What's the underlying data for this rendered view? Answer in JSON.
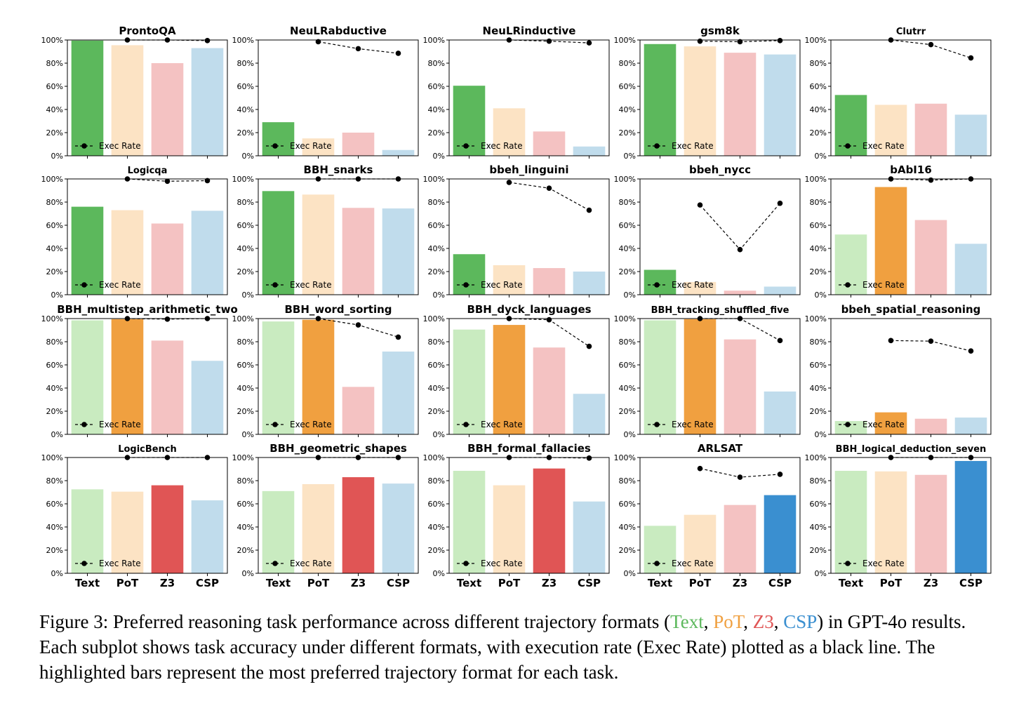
{
  "chart_data": {
    "type": "bar",
    "categories": [
      "Text",
      "PoT",
      "Z3",
      "CSP"
    ],
    "legend_label": "Exec Rate",
    "legend_placement": "lower-left",
    "ylim": [
      0,
      100
    ],
    "yticks": [
      "0%",
      "20%",
      "40%",
      "60%",
      "80%",
      "100%"
    ],
    "colors": {
      "light": [
        "#c9ebc0",
        "#fce3c4",
        "#f4c2c2",
        "#c0dcec"
      ],
      "highlight": [
        "#5cb85c",
        "#f0a040",
        "#e05555",
        "#3a8fd0"
      ],
      "line": "#000000"
    },
    "panels": [
      {
        "title": "ProntoQA",
        "values": [
          99.5,
          95.5,
          80,
          93
        ],
        "exec": [
          null,
          100,
          100,
          99.5
        ],
        "highlight": 0,
        "bold_title": true
      },
      {
        "title": "NeuLRabductive",
        "values": [
          29,
          15,
          20,
          5
        ],
        "exec": [
          null,
          98.5,
          92.5,
          88.5
        ],
        "highlight": 0,
        "bold_title": true
      },
      {
        "title": "NeuLRinductive",
        "values": [
          60.5,
          41,
          21,
          8
        ],
        "exec": [
          null,
          100,
          99,
          97.5
        ],
        "highlight": 0,
        "bold_title": true
      },
      {
        "title": "gsm8k",
        "values": [
          96.5,
          94.5,
          89,
          87.5
        ],
        "exec": [
          null,
          99,
          98.5,
          99.5
        ],
        "highlight": 0,
        "bold_title": true
      },
      {
        "title": "Clutrr",
        "values": [
          52.5,
          44,
          45,
          35.5
        ],
        "exec": [
          null,
          100,
          96,
          84.5
        ],
        "highlight": 0,
        "bold_title": false
      },
      {
        "title": "Logicqa",
        "values": [
          76,
          73,
          61.5,
          72.5
        ],
        "exec": [
          null,
          100,
          98,
          98.5
        ],
        "highlight": 0,
        "bold_title": false
      },
      {
        "title": "BBH_snarks",
        "values": [
          89.5,
          86.5,
          75,
          74.5
        ],
        "exec": [
          null,
          100,
          100,
          100
        ],
        "highlight": 0,
        "bold_title": true
      },
      {
        "title": "bbeh_linguini",
        "values": [
          35,
          25.5,
          23,
          20
        ],
        "exec": [
          null,
          97,
          92,
          73
        ],
        "highlight": 0,
        "bold_title": true
      },
      {
        "title": "bbeh_nycc",
        "values": [
          21.5,
          11,
          3.5,
          7
        ],
        "exec": [
          null,
          77.5,
          39,
          79
        ],
        "highlight": 0,
        "bold_title": true
      },
      {
        "title": "bAbI16",
        "values": [
          52,
          93,
          64.5,
          44
        ],
        "exec": [
          null,
          100,
          99,
          100
        ],
        "highlight": 1,
        "bold_title": true
      },
      {
        "title": "BBH_multistep_arithmetic_two",
        "values": [
          98.5,
          99.5,
          81,
          63.5
        ],
        "exec": [
          null,
          100,
          99.5,
          100
        ],
        "highlight": 1,
        "bold_title": true
      },
      {
        "title": "BBH_word_sorting",
        "values": [
          97.5,
          99,
          41,
          71.5
        ],
        "exec": [
          null,
          100,
          94.5,
          84
        ],
        "highlight": 1,
        "bold_title": true
      },
      {
        "title": "BBH_dyck_languages",
        "values": [
          90.5,
          94.5,
          75,
          35
        ],
        "exec": [
          null,
          100,
          99,
          76
        ],
        "highlight": 1,
        "bold_title": true
      },
      {
        "title": "BBH_tracking_shuffled_five",
        "values": [
          98.5,
          99.5,
          82,
          37
        ],
        "exec": [
          null,
          100,
          100,
          81
        ],
        "highlight": 1,
        "bold_title": false
      },
      {
        "title": "bbeh_spatial_reasoning",
        "values": [
          11.5,
          19,
          13.5,
          14.5
        ],
        "exec": [
          null,
          81,
          80.5,
          72
        ],
        "highlight": 1,
        "bold_title": true
      },
      {
        "title": "LogicBench",
        "values": [
          72.5,
          70.5,
          76,
          63
        ],
        "exec": [
          null,
          100,
          100,
          100
        ],
        "highlight": 2,
        "bold_title": false
      },
      {
        "title": "BBH_geometric_shapes",
        "values": [
          71,
          77,
          83,
          77.5
        ],
        "exec": [
          null,
          100,
          100,
          100
        ],
        "highlight": 2,
        "bold_title": true
      },
      {
        "title": "BBH_formal_fallacies",
        "values": [
          88.5,
          76,
          90.5,
          62
        ],
        "exec": [
          null,
          100,
          100,
          99.5
        ],
        "highlight": 2,
        "bold_title": true
      },
      {
        "title": "ARLSAT",
        "values": [
          41,
          50.5,
          59,
          67.5
        ],
        "exec": [
          null,
          90.5,
          83,
          85.5
        ],
        "highlight": 3,
        "bold_title": true
      },
      {
        "title": "BBH_logical_deduction_seven",
        "values": [
          88.5,
          88,
          85,
          97
        ],
        "exec": [
          null,
          100,
          100,
          100
        ],
        "highlight": 3,
        "bold_title": false
      }
    ]
  },
  "caption": {
    "prefix": "Figure 3: Preferred reasoning task performance across different trajectory formats (",
    "text_label": "Text",
    "sep1": ", ",
    "pot_label": "PoT",
    "sep2": ", ",
    "z3_label": "Z3",
    "sep3": ", ",
    "csp_label": "CSP",
    "suffix": ") in GPT-4o results. Each subplot shows task accuracy under different formats, with execution rate (Exec Rate) plotted as a black line. The highlighted bars represent the most preferred trajectory format for each task."
  }
}
